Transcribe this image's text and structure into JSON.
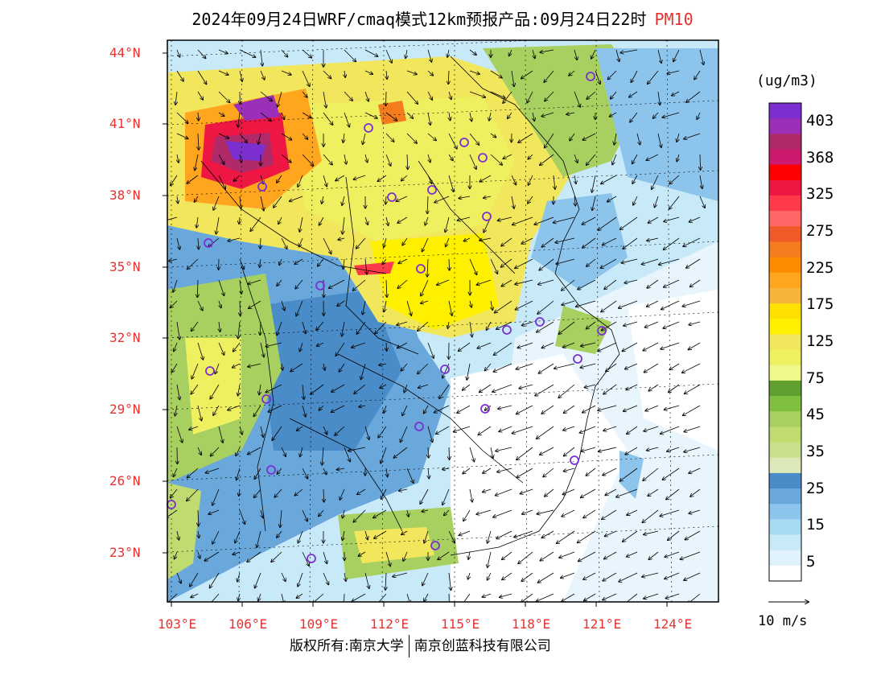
{
  "title": "2024年09月24日WRF/cmaq模式12km预报产品:09月24日22时",
  "pollutant": "PM10",
  "unit": "(ug/m3)",
  "footer": {
    "copyright": "版权所有:南京大学",
    "company": "南京创蓝科技有限公司"
  },
  "wind_reference": "10 m/s",
  "lat_labels": [
    "44°N",
    "41°N",
    "38°N",
    "35°N",
    "32°N",
    "29°N",
    "26°N",
    "23°N"
  ],
  "lon_labels": [
    "103°E",
    "106°E",
    "109°E",
    "112°E",
    "115°E",
    "118°E",
    "121°E",
    "124°E"
  ],
  "colorbar": {
    "labels": [
      "403",
      "368",
      "325",
      "275",
      "225",
      "175",
      "125",
      "75",
      "45",
      "35",
      "25",
      "15",
      "5"
    ],
    "colors_top_to_bottom": [
      "#7b2fd0",
      "#9a2fb8",
      "#b02a6a",
      "#cc1a6e",
      "#ff0000",
      "#ee1744",
      "#ff3b4b",
      "#ff6666",
      "#f05a28",
      "#f47b1e",
      "#ff8c00",
      "#ffa51e",
      "#f5b43a",
      "#ffe000",
      "#fff000",
      "#f2e65c",
      "#eef060",
      "#f0f88a",
      "#60a030",
      "#80c040",
      "#a8d060",
      "#c0dc70",
      "#c8e08c",
      "#dde8b8",
      "#4a8cc8",
      "#6aa8dc",
      "#8cc4ec",
      "#a8daf4",
      "#c8eaf8",
      "#e0f2fc",
      "#ffffff"
    ]
  },
  "map_layers": {
    "pollution_high": "purple-red patch near 106°E 40°N",
    "pollution_medium": "yellow-orange over North China Plain",
    "pollution_low": "blue-white over southeast coast and sea"
  }
}
